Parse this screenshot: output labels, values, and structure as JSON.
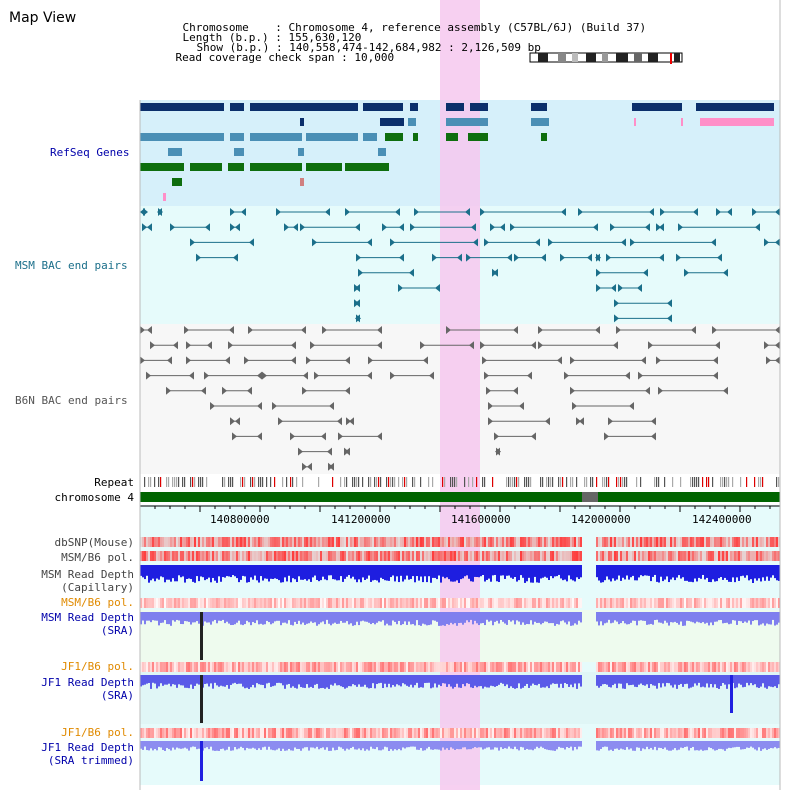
{
  "header": {
    "title": "Map View",
    "chromosome_label": "Chromosome",
    "chromosome_value": "Chromosome 4, reference assembly (C57BL/6J) (Build 37)",
    "length_label": "Length (b.p.)",
    "length_value": "155,630,120",
    "show_label": "Show (b.p.)",
    "show_value": "140,558,474-142,684,982 : 2,126,509 bp",
    "coverage_label": "Read coverage check span",
    "coverage_value": "10,000"
  },
  "tracks": {
    "refseq": "RefSeq Genes",
    "msm_bac": "MSM BAC end pairs",
    "b6n_bac": "B6N BAC end pairs",
    "repeat": "Repeat",
    "chromosome": "chromosome 4",
    "dbsnp": "dbSNP(Mouse)",
    "msm_b6_pol_1": "MSM/B6 pol.",
    "msm_read_depth_cap_1": "MSM Read Depth",
    "msm_read_depth_cap_2": "(Capillary)",
    "msm_b6_pol_2": "MSM/B6 pol.",
    "msm_read_depth_sra_1": "MSM Read Depth",
    "msm_read_depth_sra_2": "(SRA)",
    "jf1_b6_pol_1": "JF1/B6 pol.",
    "jf1_read_depth_sra_1": "JF1 Read Depth",
    "jf1_read_depth_sra_2": "(SRA)",
    "jf1_b6_pol_2": "JF1/B6 pol.",
    "jf1_read_depth_trim_1": "JF1 Read Depth",
    "jf1_read_depth_trim_2": "(SRA trimmed)"
  },
  "axis": {
    "ticks": [
      "140800000",
      "141200000",
      "141600000",
      "142000000",
      "142400000"
    ]
  },
  "colors": {
    "refseq_dark": "#0b2f6b",
    "refseq_mid": "#4a8fb5",
    "refseq_green": "#0e6e0e",
    "refseq_pink": "#ff8fc8",
    "refseq_bg": "#d6f0fa",
    "msm_bac": "#1b6f8a",
    "msm_label": "#1b6f8a",
    "b6n": "#555555",
    "highlight": "#f6c8ee",
    "chrom_green": "#006400",
    "blue_label": "#0000aa",
    "orange_label": "#e08a00",
    "gray_label": "#444444"
  }
}
